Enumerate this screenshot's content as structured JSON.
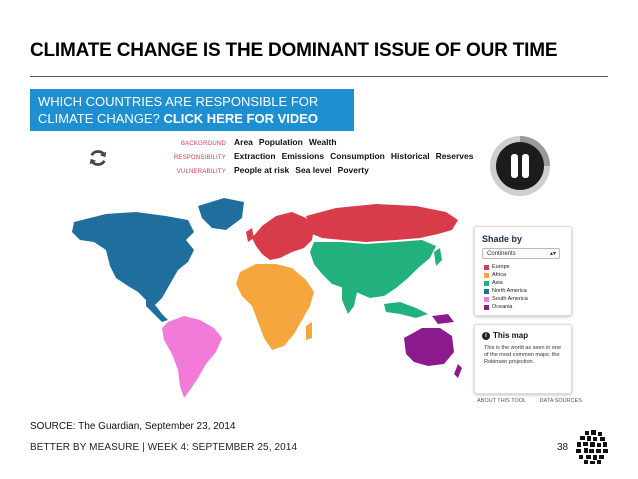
{
  "slide": {
    "title": "CLIMATE CHANGE IS THE DOMINANT ISSUE OF OUR TIME",
    "source": "SOURCE: The Guardian, September 23, 2014",
    "footer": "BETTER BY MEASURE | WEEK 4: SEPTEMBER 25, 2014",
    "page_number": "38"
  },
  "banner": {
    "line1": "WHICH COUNTRIES ARE RESPONSIBLE FOR",
    "line2_plain": "CLIMATE CHANGE? ",
    "line2_bold": "CLICK HERE FOR VIDEO"
  },
  "toolbar": {
    "rows": [
      {
        "category": "BACKGROUND",
        "items": [
          "Area",
          "Population",
          "Wealth"
        ]
      },
      {
        "category": "RESPONSIBILITY",
        "items": [
          "Extraction",
          "Emissions",
          "Consumption",
          "Historical",
          "Reserves"
        ]
      },
      {
        "category": "VULNERABILITY",
        "items": [
          "People at risk",
          "Sea level",
          "Poverty"
        ]
      }
    ]
  },
  "shade_by": {
    "title": "Shade by",
    "selected": "Continents",
    "legend": [
      {
        "label": "Europe",
        "color": "#d83c4a"
      },
      {
        "label": "Africa",
        "color": "#f5a63c"
      },
      {
        "label": "Asia",
        "color": "#22b07d"
      },
      {
        "label": "North America",
        "color": "#1f6e9e"
      },
      {
        "label": "South America",
        "color": "#f27ad9"
      },
      {
        "label": "Oceania",
        "color": "#8b1a8e"
      }
    ]
  },
  "this_map": {
    "title": "This map",
    "body": "This is the world as seen in one of the most common maps: the Robinsen projection."
  },
  "links": {
    "about": "ABOUT THIS TOOL",
    "data": "DATA SOURCES"
  },
  "colors": {
    "banner": "#1e8fd0",
    "europe": "#d83c4a",
    "africa": "#f5a63c",
    "asia": "#22b07d",
    "north_america": "#1f6e9e",
    "south_america": "#f27ad9",
    "oceania": "#8b1a8e"
  }
}
